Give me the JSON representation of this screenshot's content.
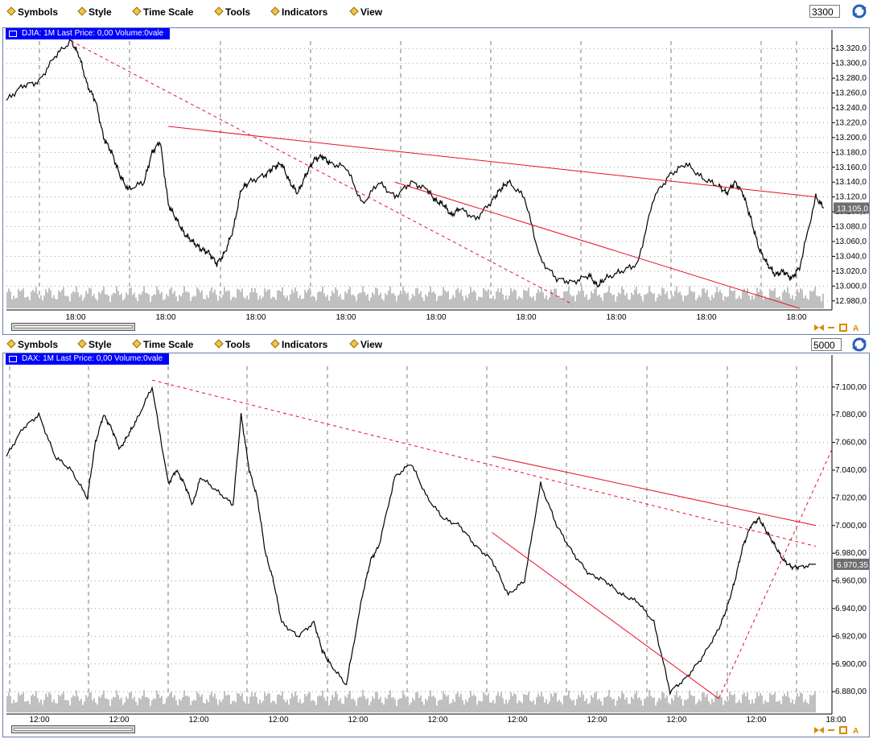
{
  "menu": {
    "symbols": "Symbols",
    "style": "Style",
    "time_scale": "Time Scale",
    "tools": "Tools",
    "indicators": "Indicators",
    "view": "View"
  },
  "colors": {
    "price_line": "#000000",
    "trend_line": "#e8102a",
    "volume": "#c0c0c0",
    "label_bg": "#0000ff",
    "grid": "#7a7a7a"
  },
  "charts": [
    {
      "count": "3300",
      "label": "DJIA: 1M Last Price: 0,00 Volume:0vale",
      "last_price": "13.105,0",
      "y_ticks": [
        "13.320,0",
        "13.300,0",
        "13.280,0",
        "13.260,0",
        "13.240,0",
        "13.220,0",
        "13.200,0",
        "13.180,0",
        "13.160,0",
        "13.140,0",
        "13.120,0",
        "13.100,0",
        "13.080,0",
        "13.060,0",
        "13.040,0",
        "13.020,0",
        "13.000,0",
        "12.980,0"
      ],
      "x_ticks": [
        "18:00",
        "18:00",
        "18:00",
        "18:00",
        "18:00",
        "18:00",
        "18:00",
        "18:00",
        "18:00"
      ]
    },
    {
      "count": "5000",
      "label": "DAX: 1M Last Price: 0,00 Volume:0vale",
      "last_price": "6.970,35",
      "y_ticks": [
        "7.100,00",
        "7.080,00",
        "7.060,00",
        "7.040,00",
        "7.020,00",
        "7.000,00",
        "6.980,00",
        "6.960,00",
        "6.940,00",
        "6.920,00",
        "6.900,00",
        "6.880,00"
      ],
      "x_ticks": [
        "12:00",
        "12:00",
        "12:00",
        "12:00",
        "12:00",
        "12:00",
        "12:00",
        "12:00",
        "12:00",
        "12:00",
        "18:00"
      ]
    }
  ],
  "chart_data": [
    {
      "type": "line",
      "title": "DJIA: 1M Last Price: 0,00 Volume:0vale",
      "ylim": [
        12970,
        13330
      ],
      "x": [
        0,
        2,
        4,
        6,
        8,
        9,
        10,
        11,
        12,
        13,
        14,
        15,
        17,
        18,
        19,
        20,
        21,
        22,
        23,
        24,
        25,
        26,
        27,
        28,
        29,
        30,
        32,
        33,
        34,
        35,
        36,
        37,
        38,
        39,
        40,
        42,
        44,
        46,
        48,
        50,
        52,
        53,
        54,
        55,
        56,
        58,
        60,
        61,
        62,
        64,
        66,
        68,
        70,
        72,
        73,
        74,
        76,
        78,
        80,
        82,
        84,
        86,
        88,
        89,
        90,
        91,
        92,
        93,
        94,
        95,
        96,
        97,
        98,
        100,
        101
      ],
      "values": [
        13250,
        13270,
        13275,
        13310,
        13330,
        13310,
        13270,
        13250,
        13200,
        13180,
        13150,
        13130,
        13140,
        13180,
        13195,
        13110,
        13090,
        13070,
        13060,
        13050,
        13045,
        13030,
        13045,
        13075,
        13130,
        13140,
        13150,
        13160,
        13165,
        13140,
        13125,
        13150,
        13170,
        13175,
        13165,
        13160,
        13110,
        13140,
        13120,
        13140,
        13130,
        13115,
        13110,
        13095,
        13105,
        13090,
        13115,
        13130,
        13140,
        13120,
        13035,
        13010,
        13005,
        13015,
        13000,
        13010,
        13020,
        13030,
        13120,
        13150,
        13165,
        13145,
        13135,
        13125,
        13140,
        13125,
        13090,
        13050,
        13030,
        13015,
        13020,
        13010,
        13025,
        13120,
        13105
      ],
      "trend_lines": [
        {
          "from": [
            20,
            13215
          ],
          "to": [
            100,
            13120
          ],
          "style": "solid"
        },
        {
          "from": [
            8,
            13330
          ],
          "to": [
            70,
            12975
          ],
          "style": "dashed"
        },
        {
          "from": [
            48,
            13140
          ],
          "to": [
            98,
            12970
          ],
          "style": "solid"
        }
      ]
    },
    {
      "type": "line",
      "title": "DAX: 1M Last Price: 0,00 Volume:0vale",
      "ylim": [
        6865,
        7115
      ],
      "x": [
        0,
        2,
        4,
        6,
        8,
        10,
        11,
        12,
        13,
        14,
        15,
        16,
        18,
        20,
        21,
        22,
        23,
        24,
        26,
        28,
        29,
        30,
        31,
        32,
        33,
        34,
        36,
        38,
        39,
        40,
        42,
        44,
        45,
        46,
        48,
        50,
        52,
        54,
        56,
        58,
        60,
        62,
        64,
        66,
        68,
        70,
        72,
        74,
        76,
        78,
        80,
        82,
        84,
        86,
        88,
        89,
        90,
        91,
        92,
        93,
        94,
        95,
        96,
        97,
        98,
        100
      ],
      "values": [
        7050,
        7070,
        7080,
        7050,
        7040,
        7020,
        7060,
        7080,
        7070,
        7055,
        7065,
        7075,
        7100,
        7030,
        7040,
        7030,
        7015,
        7035,
        7025,
        7015,
        7080,
        7040,
        7020,
        6980,
        6960,
        6930,
        6920,
        6930,
        6910,
        6900,
        6885,
        6950,
        6975,
        6985,
        7035,
        7045,
        7020,
        7005,
        7000,
        6985,
        6975,
        6950,
        6960,
        7030,
        7000,
        6980,
        6965,
        6960,
        6950,
        6945,
        6930,
        6880,
        6890,
        6905,
        6925,
        6940,
        6960,
        6985,
        7000,
        7005,
        6995,
        6985,
        6975,
        6970,
        6970,
        6972
      ],
      "trend_lines": [
        {
          "from": [
            60,
            7050
          ],
          "to": [
            100,
            7000
          ],
          "style": "solid"
        },
        {
          "from": [
            18,
            7105
          ],
          "to": [
            100,
            6985
          ],
          "style": "dashed"
        },
        {
          "from": [
            60,
            6995
          ],
          "to": [
            88,
            6875
          ],
          "style": "solid"
        },
        {
          "from": [
            88,
            6875
          ],
          "to": [
            102,
            7055
          ],
          "style": "dashed"
        }
      ]
    }
  ]
}
